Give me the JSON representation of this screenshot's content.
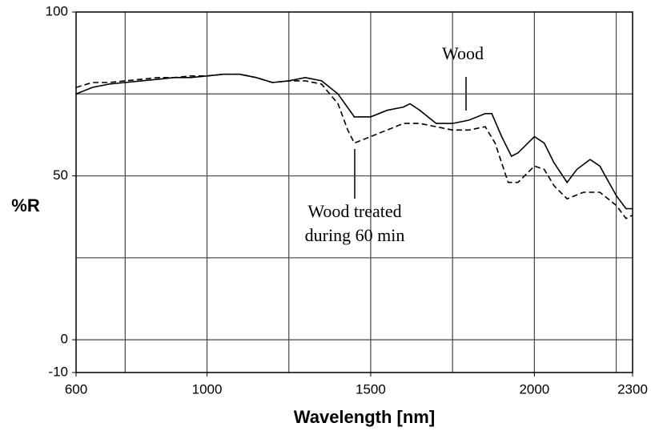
{
  "chart_data": {
    "type": "line",
    "xlabel": "Wavelength [nm]",
    "ylabel": "%R",
    "xlim": [
      600,
      2300
    ],
    "ylim": [
      -10,
      100
    ],
    "xticks": [
      600,
      1000,
      1500,
      2000,
      2300
    ],
    "yticks": [
      -10,
      0,
      50,
      100
    ],
    "xgrid": [
      750,
      1000,
      1250,
      1500,
      1750,
      2000,
      2250
    ],
    "ygrid": [
      0,
      25,
      50,
      75
    ],
    "grid": true,
    "series": [
      {
        "color": "#000000",
        "dash": "solid",
        "x": [
          600,
          650,
          700,
          750,
          800,
          850,
          900,
          950,
          1000,
          1050,
          1100,
          1150,
          1200,
          1250,
          1300,
          1350,
          1400,
          1450,
          1500,
          1550,
          1600,
          1620,
          1650,
          1700,
          1750,
          1800,
          1850,
          1870,
          1900,
          1930,
          1950,
          2000,
          2030,
          2060,
          2100,
          2130,
          2170,
          2200,
          2250,
          2280,
          2300
        ],
        "values": [
          75,
          77,
          78,
          78.5,
          79,
          79.5,
          80,
          80,
          80.5,
          81,
          81,
          80,
          78.5,
          79,
          80,
          79,
          75,
          68,
          68,
          70,
          71,
          72,
          70,
          66,
          66,
          67,
          69,
          69,
          62,
          56,
          57,
          62,
          60,
          54,
          48,
          52,
          55,
          53,
          44,
          40,
          40
        ]
      },
      {
        "color": "#000000",
        "dash": "dashed",
        "x": [
          600,
          650,
          700,
          750,
          800,
          850,
          900,
          950,
          1000,
          1050,
          1100,
          1150,
          1200,
          1250,
          1300,
          1350,
          1400,
          1430,
          1450,
          1500,
          1550,
          1600,
          1650,
          1700,
          1750,
          1800,
          1850,
          1880,
          1920,
          1950,
          2000,
          2030,
          2060,
          2100,
          2150,
          2200,
          2250,
          2280,
          2300
        ],
        "values": [
          77,
          78.5,
          78.5,
          79,
          79.5,
          80,
          80,
          80.5,
          80.5,
          81,
          81,
          80,
          78.5,
          79,
          79,
          78,
          72,
          64,
          60,
          62,
          64,
          66,
          66,
          65,
          64,
          64,
          65,
          60,
          48,
          48,
          53,
          52,
          47,
          43,
          45,
          45,
          41,
          37,
          38
        ]
      }
    ],
    "annotations": [
      {
        "lines": [
          "Wood"
        ]
      },
      {
        "lines": [
          "Wood treated",
          "during 60 min"
        ]
      }
    ]
  }
}
